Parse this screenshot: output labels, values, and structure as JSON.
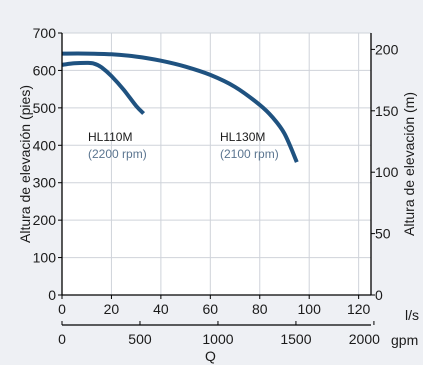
{
  "chart_data": {
    "type": "line",
    "title": "",
    "x_unit_primary": "l/s",
    "x_unit_secondary": "gpm",
    "xlabel": "Q",
    "ylabel_left": "Altura de elevación (pies)",
    "ylabel_right": "Altura de elevación (m)",
    "xlim": [
      0,
      125
    ],
    "ylim_left": [
      0,
      700
    ],
    "ylim_right_m": [
      0,
      213.36
    ],
    "x_ticks_ls": [
      "0",
      "20",
      "40",
      "60",
      "80",
      "100",
      "120"
    ],
    "x_ticks_gpm": [
      "0",
      "500",
      "1000",
      "1500",
      "2000"
    ],
    "x_ticks_gpm_values": [
      0,
      500,
      1000,
      1500,
      2000
    ],
    "y_ticks_left": [
      "0",
      "100",
      "200",
      "300",
      "400",
      "500",
      "600",
      "700"
    ],
    "y_ticks_right": [
      "0",
      "50",
      "100",
      "150",
      "200"
    ],
    "grid": true,
    "series": [
      {
        "name": "HL110M",
        "rpm_label": "(2200 rpm)",
        "color": "#1f5280",
        "x": [
          0,
          5,
          10,
          13,
          16,
          20,
          25,
          30,
          33
        ],
        "y": [
          615,
          619,
          620,
          618,
          608,
          585,
          548,
          505,
          485
        ]
      },
      {
        "name": "HL130M",
        "rpm_label": "(2100 rpm)",
        "color": "#1f5280",
        "x": [
          0,
          10,
          20,
          30,
          40,
          50,
          60,
          70,
          80,
          85,
          90,
          95
        ],
        "y": [
          645,
          645,
          643,
          637,
          626,
          610,
          588,
          556,
          508,
          476,
          431,
          355
        ]
      }
    ]
  },
  "colors": {
    "background": "#eef0f4",
    "plot_background": "#ffffff",
    "grid": "#cfd3da",
    "curve": "#1f5280",
    "rpm_text": "#5b7590"
  }
}
